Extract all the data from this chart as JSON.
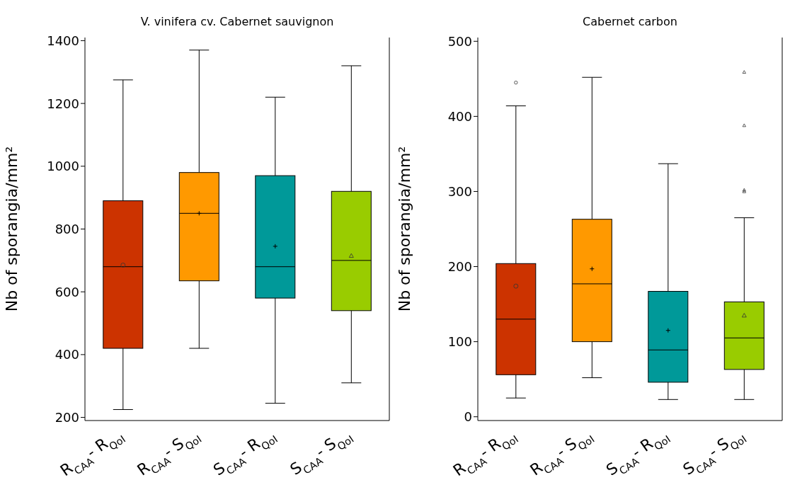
{
  "chart_data": [
    {
      "type": "box",
      "title": "V. vinifera cv. Cabernet sauvignon",
      "ylabel": "Nb of sporangia/mm²",
      "categories": [
        "R$_{CAA}$- R$_{QoI}$",
        "R$_{CAA}$- S$_{QoI}$",
        "S$_{CAA}$- R$_{QoI}$",
        "S$_{CAA}$- S$_{QoI}$"
      ],
      "ylim": [
        190,
        1410
      ],
      "yticks": [
        200,
        400,
        600,
        800,
        1000,
        1200,
        1400
      ],
      "series": [
        {
          "color": "#cc3300",
          "marker": "circle",
          "boxes": [
            {
              "low": 225,
              "q1": 420,
              "median": 680,
              "q3": 890,
              "high": 1275,
              "mean": 685
            },
            null,
            null,
            null
          ]
        },
        {
          "color": "#ff9900",
          "marker": "cross",
          "boxes": [
            null,
            {
              "low": 420,
              "q1": 635,
              "median": 850,
              "q3": 980,
              "high": 1370,
              "mean": 850
            },
            null,
            null
          ]
        },
        {
          "color": "#009999",
          "marker": "cross",
          "boxes": [
            null,
            null,
            {
              "low": 245,
              "q1": 580,
              "median": 680,
              "q3": 970,
              "high": 1220,
              "mean": 745
            },
            null
          ]
        },
        {
          "color": "#99cc00",
          "marker": "triangle",
          "boxes": [
            null,
            null,
            null,
            {
              "low": 310,
              "q1": 540,
              "median": 700,
              "q3": 920,
              "high": 1320,
              "mean": 715
            }
          ]
        }
      ]
    },
    {
      "type": "box",
      "title": "Cabernet carbon",
      "ylabel": "Nb of sporangia/mm²",
      "categories": [
        "R$_{CAA}$- R$_{QoI}$",
        "R$_{CAA}$- S$_{QoI}$",
        "S$_{CAA}$- R$_{QoI}$",
        "S$_{CAA}$- S$_{QoI}$"
      ],
      "ylim": [
        -5,
        505
      ],
      "yticks": [
        0,
        100,
        200,
        300,
        400,
        500
      ],
      "series": [
        {
          "color": "#cc3300",
          "marker": "circle",
          "boxes": [
            {
              "low": 25,
              "q1": 56,
              "median": 130,
              "q3": 204,
              "high": 414,
              "mean": 174,
              "outliers": [
                445
              ]
            },
            null,
            null,
            null
          ]
        },
        {
          "color": "#ff9900",
          "marker": "cross",
          "boxes": [
            null,
            {
              "low": 52,
              "q1": 100,
              "median": 177,
              "q3": 263,
              "high": 452,
              "mean": 197
            },
            null,
            null
          ]
        },
        {
          "color": "#009999",
          "marker": "cross",
          "boxes": [
            null,
            null,
            {
              "low": 23,
              "q1": 46,
              "median": 89,
              "q3": 167,
              "high": 337,
              "mean": 115
            },
            null
          ]
        },
        {
          "color": "#99cc00",
          "marker": "triangle",
          "boxes": [
            null,
            null,
            null,
            {
              "low": 23,
              "q1": 63,
              "median": 105,
              "q3": 153,
              "high": 265,
              "mean": 135,
              "outliers": [
                459,
                388,
                302,
                300
              ]
            }
          ]
        }
      ]
    }
  ]
}
